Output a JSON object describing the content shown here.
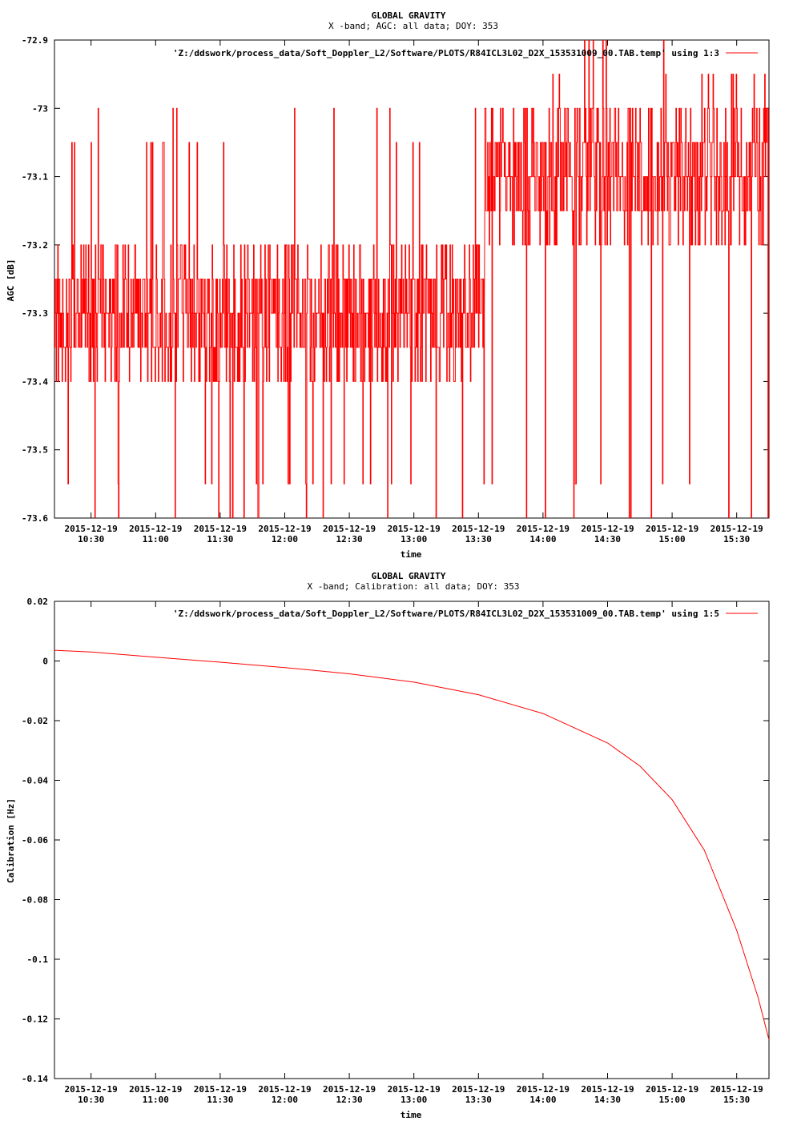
{
  "chart_data": [
    {
      "type": "line",
      "title": "GLOBAL GRAVITY",
      "subtitle": "X -band; AGC: all data; DOY: 353",
      "xlabel": "time",
      "ylabel": "AGC [dB]",
      "xlim": [
        "2015-12-19 10:13",
        "2015-12-19 15:45"
      ],
      "ylim": [
        -73.6,
        -72.9
      ],
      "ytick_labels": [
        "-72.9",
        "-73",
        "-73.1",
        "-73.2",
        "-73.3",
        "-73.4",
        "-73.5",
        "-73.6"
      ],
      "ytick_values": [
        -72.9,
        -73.0,
        -73.1,
        -73.2,
        -73.3,
        -73.4,
        -73.5,
        -73.6
      ],
      "xtick_values": [
        "10:30",
        "11:00",
        "11:30",
        "12:00",
        "12:30",
        "13:00",
        "13:30",
        "14:00",
        "14:30",
        "15:00",
        "15:30"
      ],
      "xtick_date": "2015-12-19",
      "xtick_time": [
        "10:30",
        "11:00",
        "11:30",
        "12:00",
        "12:30",
        "13:00",
        "13:30",
        "14:00",
        "14:30",
        "15:00",
        "15:30"
      ],
      "legend_position": "top-right",
      "color": "#ff0000",
      "series": [
        {
          "name": "'Z:/ddswork/process_data/Soft_Doppler_L2/Software/PLOTS/R84ICL3L02_D2X_153531009_00.TAB.temp' using 1:3",
          "segments": [
            {
              "x_start": "10:13",
              "x_end": "13:33",
              "typical_range": [
                -73.4,
                -73.2
              ],
              "extremes": [
                -73.6,
                -73.0
              ]
            },
            {
              "x_start": "13:33",
              "x_end": "15:45",
              "typical_range": [
                -73.2,
                -73.0
              ],
              "extremes": [
                -73.6,
                -72.9
              ]
            }
          ]
        }
      ]
    },
    {
      "type": "line",
      "title": "GLOBAL GRAVITY",
      "subtitle": "X -band; Calibration: all data; DOY: 353",
      "xlabel": "time",
      "ylabel": "Calibration [Hz]",
      "xlim": [
        "2015-12-19 10:13",
        "2015-12-19 15:45"
      ],
      "ylim": [
        -0.14,
        0.02
      ],
      "ytick_labels": [
        "0.02",
        "0",
        "-0.02",
        "-0.04",
        "-0.06",
        "-0.08",
        "-0.1",
        "-0.12",
        "-0.14"
      ],
      "ytick_values": [
        0.02,
        0.0,
        -0.02,
        -0.04,
        -0.06,
        -0.08,
        -0.1,
        -0.12,
        -0.14
      ],
      "xtick_values": [
        "10:30",
        "11:00",
        "11:30",
        "12:00",
        "12:30",
        "13:00",
        "13:30",
        "14:00",
        "14:30",
        "15:00",
        "15:30"
      ],
      "xtick_date": "2015-12-19",
      "xtick_time": [
        "10:30",
        "11:00",
        "11:30",
        "12:00",
        "12:30",
        "13:00",
        "13:30",
        "14:00",
        "14:30",
        "15:00",
        "15:30"
      ],
      "legend_position": "top-right",
      "color": "#ff0000",
      "series": [
        {
          "name": "'Z:/ddswork/process_data/Soft_Doppler_L2/Software/PLOTS/R84ICL3L02_D2X_153531009_00.TAB.temp' using 1:5",
          "x": [
            "10:13",
            "10:30",
            "11:00",
            "11:30",
            "12:00",
            "12:30",
            "13:00",
            "13:30",
            "14:00",
            "14:30",
            "14:45",
            "15:00",
            "15:15",
            "15:30",
            "15:40",
            "15:45"
          ],
          "y": [
            0.0036,
            0.003,
            0.0013,
            -0.0004,
            -0.0022,
            -0.0043,
            -0.0071,
            -0.0113,
            -0.0176,
            -0.0275,
            -0.0352,
            -0.0465,
            -0.0635,
            -0.0903,
            -0.113,
            -0.127
          ]
        }
      ]
    }
  ]
}
